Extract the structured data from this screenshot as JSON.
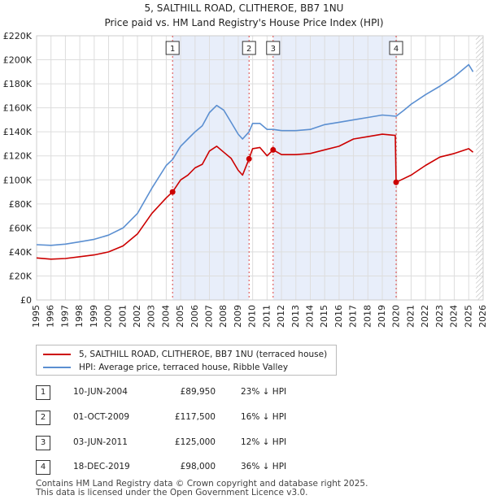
{
  "chart_data": {
    "type": "line",
    "title": "5, SALTHILL ROAD, CLITHEROE, BB7 1NU",
    "subtitle": "Price paid vs. HM Land Registry's House Price Index (HPI)",
    "xlim": [
      1995,
      2026
    ],
    "ylim": [
      0,
      220000
    ],
    "x_ticks": [
      1995,
      1996,
      1997,
      1998,
      1999,
      2000,
      2001,
      2002,
      2003,
      2004,
      2005,
      2006,
      2007,
      2008,
      2009,
      2010,
      2011,
      2012,
      2013,
      2014,
      2015,
      2016,
      2017,
      2018,
      2019,
      2020,
      2021,
      2022,
      2023,
      2024,
      2025,
      2026
    ],
    "y_ticks": [
      0,
      20000,
      40000,
      60000,
      80000,
      100000,
      120000,
      140000,
      160000,
      180000,
      200000,
      220000
    ],
    "y_tick_labels": [
      "£0",
      "£20K",
      "£40K",
      "£60K",
      "£80K",
      "£100K",
      "£120K",
      "£140K",
      "£160K",
      "£180K",
      "£200K",
      "£220K"
    ],
    "shaded_regions": [
      [
        2004.44,
        2009.75
      ],
      [
        2011.42,
        2019.96
      ]
    ],
    "hatched_from": 2025.5,
    "markers": [
      {
        "label": "1",
        "x": 2004.44,
        "y": 89950
      },
      {
        "label": "2",
        "x": 2009.75,
        "y": 117500
      },
      {
        "label": "3",
        "x": 2011.42,
        "y": 125000
      },
      {
        "label": "4",
        "x": 2019.96,
        "y": 98000
      }
    ],
    "series": [
      {
        "name": "5, SALTHILL ROAD, CLITHEROE, BB7 1NU (terraced house)",
        "color": "#cc0000",
        "points": [
          [
            1995,
            35000
          ],
          [
            1996,
            34000
          ],
          [
            1997,
            34500
          ],
          [
            1998,
            36000
          ],
          [
            1999,
            37500
          ],
          [
            2000,
            40000
          ],
          [
            2001,
            45000
          ],
          [
            2002,
            55000
          ],
          [
            2003,
            72000
          ],
          [
            2004,
            85000
          ],
          [
            2004.44,
            89950
          ],
          [
            2005,
            100000
          ],
          [
            2005.5,
            104000
          ],
          [
            2006,
            110000
          ],
          [
            2006.5,
            113000
          ],
          [
            2007,
            124000
          ],
          [
            2007.5,
            128000
          ],
          [
            2008,
            123000
          ],
          [
            2008.5,
            118000
          ],
          [
            2009,
            108000
          ],
          [
            2009.3,
            104000
          ],
          [
            2009.75,
            117500
          ],
          [
            2010,
            126000
          ],
          [
            2010.5,
            127000
          ],
          [
            2011,
            120000
          ],
          [
            2011.42,
            125000
          ],
          [
            2012,
            121000
          ],
          [
            2013,
            121000
          ],
          [
            2014,
            122000
          ],
          [
            2015,
            125000
          ],
          [
            2016,
            128000
          ],
          [
            2017,
            134000
          ],
          [
            2018,
            136000
          ],
          [
            2019,
            138000
          ],
          [
            2019.9,
            137000
          ],
          [
            2019.96,
            98000
          ],
          [
            2020.3,
            100000
          ],
          [
            2021,
            104000
          ],
          [
            2022,
            112000
          ],
          [
            2023,
            119000
          ],
          [
            2024,
            122000
          ],
          [
            2025,
            126000
          ],
          [
            2025.3,
            123000
          ]
        ]
      },
      {
        "name": "HPI: Average price, terraced house, Ribble Valley",
        "color": "#5b8fd1",
        "points": [
          [
            1995,
            46000
          ],
          [
            1996,
            45500
          ],
          [
            1997,
            46500
          ],
          [
            1998,
            48500
          ],
          [
            1999,
            50500
          ],
          [
            2000,
            54000
          ],
          [
            2001,
            60000
          ],
          [
            2002,
            72000
          ],
          [
            2003,
            93000
          ],
          [
            2004,
            112000
          ],
          [
            2004.44,
            117000
          ],
          [
            2005,
            128000
          ],
          [
            2005.5,
            134000
          ],
          [
            2006,
            140000
          ],
          [
            2006.5,
            145000
          ],
          [
            2007,
            156000
          ],
          [
            2007.5,
            162000
          ],
          [
            2008,
            158000
          ],
          [
            2008.5,
            148000
          ],
          [
            2009,
            138000
          ],
          [
            2009.3,
            134000
          ],
          [
            2009.75,
            140000
          ],
          [
            2010,
            147000
          ],
          [
            2010.5,
            147000
          ],
          [
            2011,
            142000
          ],
          [
            2011.42,
            142000
          ],
          [
            2012,
            141000
          ],
          [
            2013,
            141000
          ],
          [
            2014,
            142000
          ],
          [
            2015,
            146000
          ],
          [
            2016,
            148000
          ],
          [
            2017,
            150000
          ],
          [
            2018,
            152000
          ],
          [
            2019,
            154000
          ],
          [
            2019.96,
            153000
          ],
          [
            2020.5,
            158000
          ],
          [
            2021,
            163000
          ],
          [
            2022,
            171000
          ],
          [
            2023,
            178000
          ],
          [
            2024,
            186000
          ],
          [
            2025,
            196000
          ],
          [
            2025.3,
            190000
          ]
        ]
      }
    ]
  },
  "legend": {
    "items": [
      {
        "label": "5, SALTHILL ROAD, CLITHEROE, BB7 1NU (terraced house)",
        "color": "#cc0000"
      },
      {
        "label": "HPI: Average price, terraced house, Ribble Valley",
        "color": "#5b8fd1"
      }
    ]
  },
  "transactions": [
    {
      "num": "1",
      "date": "10-JUN-2004",
      "price": "£89,950",
      "hpi": "23% ↓ HPI"
    },
    {
      "num": "2",
      "date": "01-OCT-2009",
      "price": "£117,500",
      "hpi": "16% ↓ HPI"
    },
    {
      "num": "3",
      "date": "03-JUN-2011",
      "price": "£125,000",
      "hpi": "12% ↓ HPI"
    },
    {
      "num": "4",
      "date": "18-DEC-2019",
      "price": "£98,000",
      "hpi": "36% ↓ HPI"
    }
  ],
  "footer": {
    "line1": "Contains HM Land Registry data © Crown copyright and database right 2025.",
    "line2": "This data is licensed under the Open Government Licence v3.0."
  }
}
